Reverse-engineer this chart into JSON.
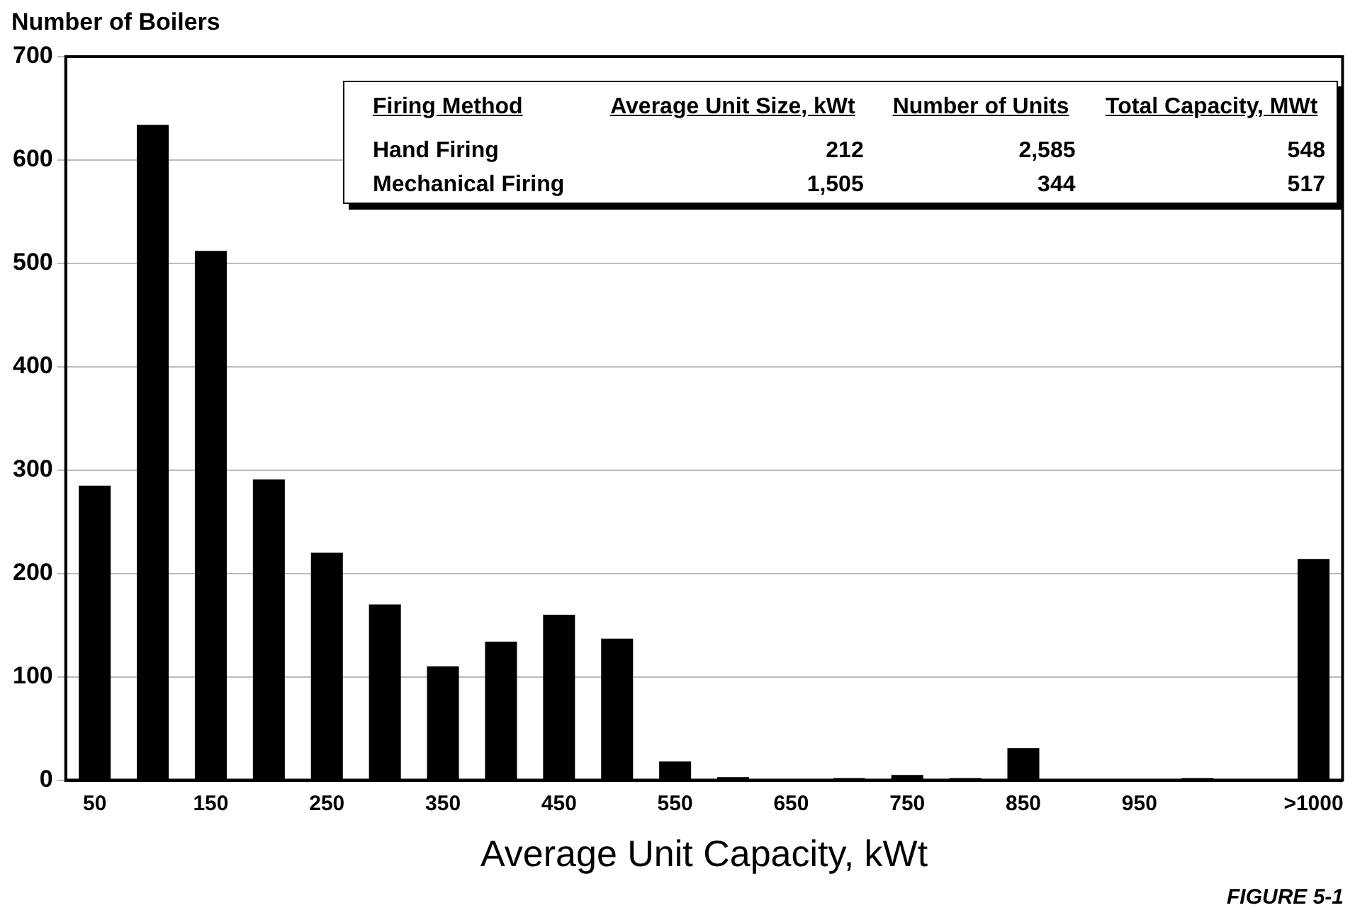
{
  "chart_data": {
    "type": "bar",
    "ylabel": "Number of Boilers",
    "xlabel": "Average Unit Capacity, kWt",
    "categories": [
      "50",
      null,
      "150",
      null,
      "250",
      null,
      "350",
      null,
      "450",
      null,
      "550",
      null,
      "650",
      null,
      "750",
      null,
      "850",
      null,
      "950",
      null,
      null,
      ">1000"
    ],
    "values": [
      285,
      634,
      512,
      291,
      220,
      170,
      110,
      134,
      160,
      137,
      18,
      3,
      1,
      2,
      5,
      2,
      31,
      0,
      1,
      2,
      0,
      214
    ],
    "color": "#000000",
    "ylim": [
      0,
      700
    ],
    "yticks": [
      0,
      100,
      200,
      300,
      400,
      500,
      600,
      700
    ],
    "grid": "y",
    "legend": false,
    "annotations": [
      "Firing Method",
      "Average Unit Size, kWt",
      "Number of Units",
      "Total Capacity, MWt",
      "Hand Firing",
      "212",
      "2,585",
      "548",
      "Mechanical Firing",
      "1,505",
      "344",
      "517",
      "FIGURE 5-1"
    ]
  }
}
